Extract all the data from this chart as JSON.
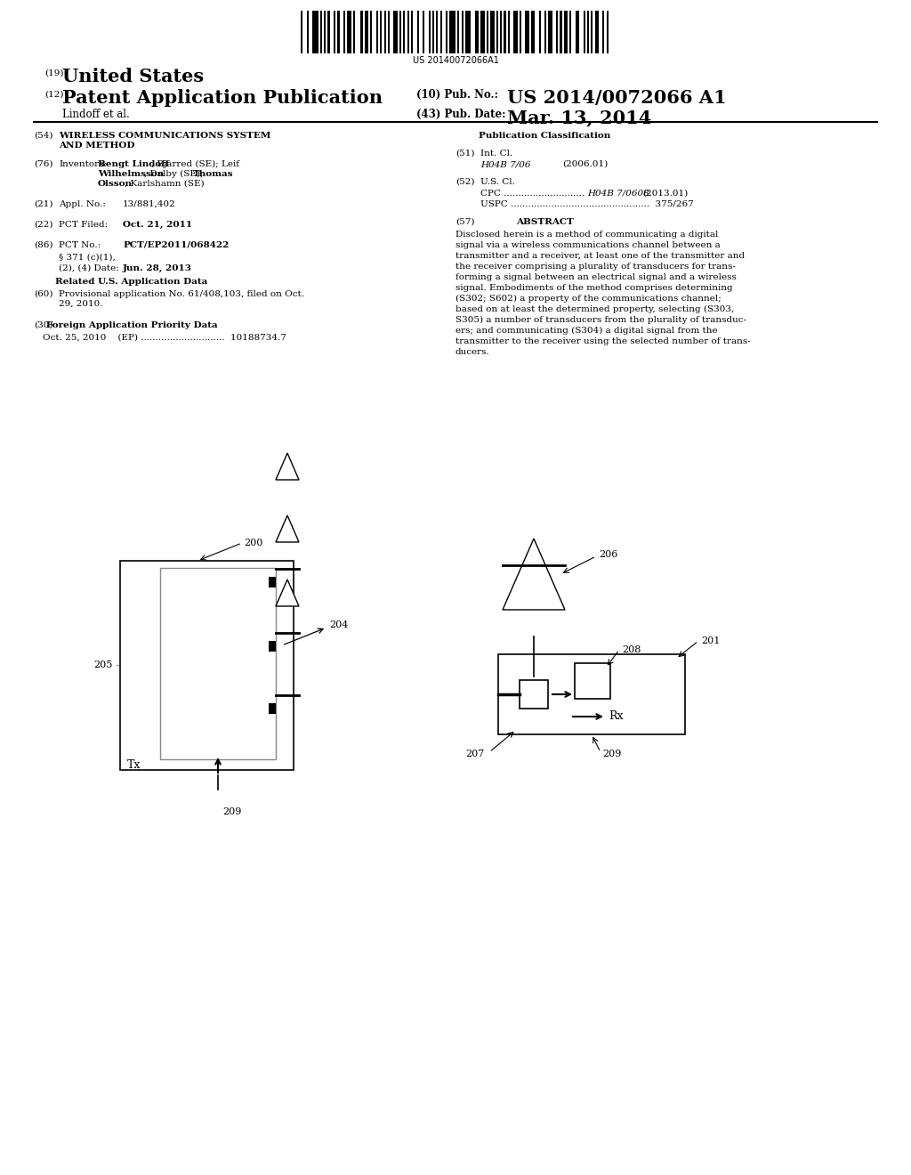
{
  "background_color": "#ffffff",
  "barcode_text": "US 20140072066A1",
  "header_19": "(19)",
  "header_country": "United States",
  "header_12": "(12)",
  "header_pub": "Patent Application Publication",
  "header_10": "(10) Pub. No.:",
  "header_pubno": "US 2014/0072066 A1",
  "header_author": "Lindoff et al.",
  "header_43": "(43) Pub. Date:",
  "header_date": "Mar. 13, 2014",
  "pub_class_header": "Publication Classification",
  "int_cl_code": "H04B 7/06",
  "int_cl_date": "(2006.01)",
  "cpc_dots": "CPC ............................",
  "cpc_code": "H04B 7/0608",
  "cpc_date": "(2013.01)",
  "uspc_line": "USPC ................................................  375/267",
  "abstract_header": "ABSTRACT",
  "abstract_text": "Disclosed herein is a method of communicating a digital\nsignal via a wireless communications channel between a\ntransmitter and a receiver, at least one of the transmitter and\nthe receiver comprising a plurality of transducers for trans-\nforming a signal between an electrical signal and a wireless\nsignal. Embodiments of the method comprises determining\n(S302; S602) a property of the communications channel;\nbased on at least the determined property, selecting (S303,\nS305) a number of transducers from the plurality of transduc-\ners; and communicating (S304) a digital signal from the\ntransmitter to the receiver using the selected number of trans-\nducers."
}
